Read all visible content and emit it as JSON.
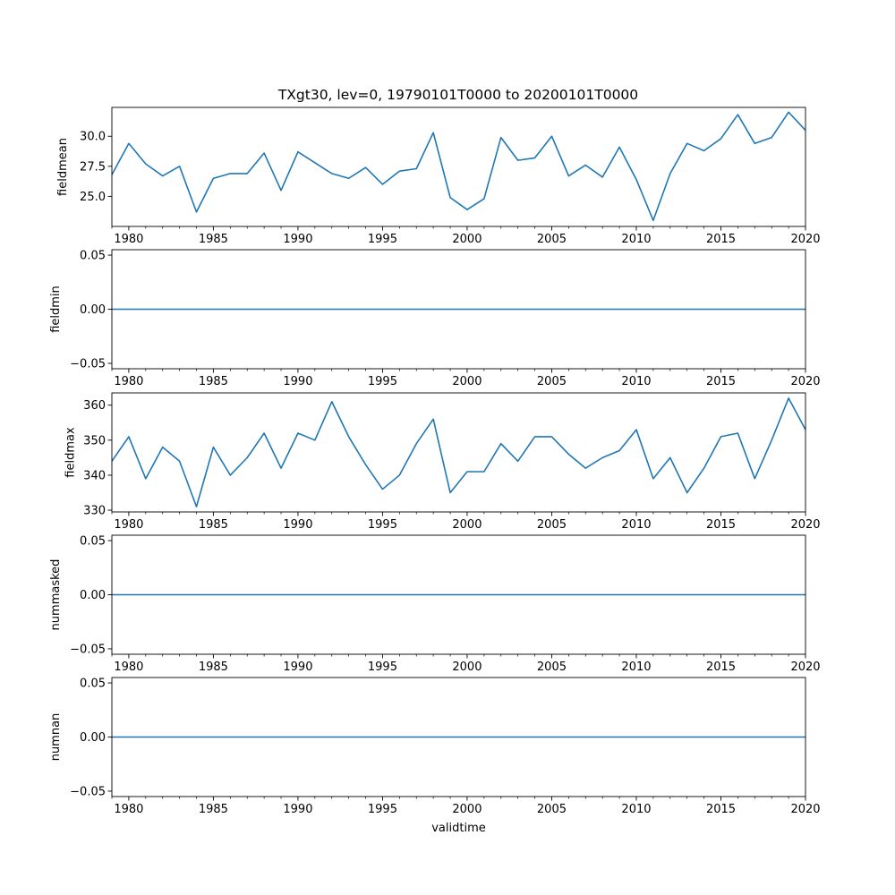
{
  "figure_title": "TXgt30, lev=0, 19790101T0000 to 20200101T0000",
  "line_color": "#1f77b4",
  "chart_data": [
    {
      "type": "line",
      "name": "fieldmean",
      "title": "TXgt30, lev=0, 19790101T0000 to 20200101T0000",
      "ylabel": "fieldmean",
      "xlabel": "",
      "xlim": [
        1979,
        2020
      ],
      "ylim": [
        22.5,
        32.4
      ],
      "yticks": [
        25.0,
        27.5,
        30.0
      ],
      "ytick_labels": [
        "25.0",
        "27.5",
        "30.0"
      ],
      "xticks": [
        1980,
        1985,
        1990,
        1995,
        2000,
        2005,
        2010,
        2015,
        2020
      ],
      "xtick_labels": [
        "1980",
        "1985",
        "1990",
        "1995",
        "2000",
        "2005",
        "2010",
        "2015",
        "2020"
      ],
      "x": [
        1979,
        1980,
        1981,
        1982,
        1983,
        1984,
        1985,
        1986,
        1987,
        1988,
        1989,
        1990,
        1991,
        1992,
        1993,
        1994,
        1995,
        1996,
        1997,
        1998,
        1999,
        2000,
        2001,
        2002,
        2003,
        2004,
        2005,
        2006,
        2007,
        2008,
        2009,
        2010,
        2011,
        2012,
        2013,
        2014,
        2015,
        2016,
        2017,
        2018,
        2019,
        2020
      ],
      "y": [
        26.8,
        29.4,
        27.7,
        26.7,
        27.5,
        23.7,
        26.5,
        26.9,
        26.9,
        28.6,
        25.5,
        28.7,
        27.8,
        26.9,
        26.5,
        27.4,
        26.0,
        27.1,
        27.3,
        30.3,
        24.9,
        23.9,
        24.8,
        29.9,
        28.0,
        28.2,
        30.0,
        26.7,
        27.6,
        26.6,
        29.1,
        26.4,
        23.0,
        26.9,
        29.4,
        28.8,
        29.8,
        31.8,
        29.4,
        29.9,
        32.0,
        30.5
      ]
    },
    {
      "type": "line",
      "name": "fieldmin",
      "title": "",
      "ylabel": "fieldmin",
      "xlabel": "",
      "xlim": [
        1979,
        2020
      ],
      "ylim": [
        -0.055,
        0.055
      ],
      "yticks": [
        -0.05,
        0.0,
        0.05
      ],
      "ytick_labels": [
        "−0.05",
        "0.00",
        "0.05"
      ],
      "xticks": [
        1980,
        1985,
        1990,
        1995,
        2000,
        2005,
        2010,
        2015,
        2020
      ],
      "xtick_labels": [
        "1980",
        "1985",
        "1990",
        "1995",
        "2000",
        "2005",
        "2010",
        "2015",
        "2020"
      ],
      "x": [
        1979,
        2020
      ],
      "y": [
        0,
        0
      ]
    },
    {
      "type": "line",
      "name": "fieldmax",
      "title": "",
      "ylabel": "fieldmax",
      "xlabel": "",
      "xlim": [
        1979,
        2020
      ],
      "ylim": [
        329.5,
        363.5
      ],
      "yticks": [
        330,
        340,
        350,
        360
      ],
      "ytick_labels": [
        "330",
        "340",
        "350",
        "360"
      ],
      "xticks": [
        1980,
        1985,
        1990,
        1995,
        2000,
        2005,
        2010,
        2015,
        2020
      ],
      "xtick_labels": [
        "1980",
        "1985",
        "1990",
        "1995",
        "2000",
        "2005",
        "2010",
        "2015",
        "2020"
      ],
      "x": [
        1979,
        1980,
        1981,
        1982,
        1983,
        1984,
        1985,
        1986,
        1987,
        1988,
        1989,
        1990,
        1991,
        1992,
        1993,
        1994,
        1995,
        1996,
        1997,
        1998,
        1999,
        2000,
        2001,
        2002,
        2003,
        2004,
        2005,
        2006,
        2007,
        2008,
        2009,
        2010,
        2011,
        2012,
        2013,
        2014,
        2015,
        2016,
        2017,
        2018,
        2019,
        2020
      ],
      "y": [
        344,
        351,
        339,
        348,
        344,
        331,
        348,
        340,
        345,
        352,
        342,
        352,
        350,
        361,
        351,
        343,
        336,
        340,
        349,
        356,
        335,
        341,
        341,
        349,
        344,
        351,
        351,
        346,
        342,
        345,
        347,
        353,
        339,
        345,
        335,
        342,
        351,
        352,
        339,
        350,
        362,
        353
      ]
    },
    {
      "type": "line",
      "name": "nummasked",
      "title": "",
      "ylabel": "nummasked",
      "xlabel": "",
      "xlim": [
        1979,
        2020
      ],
      "ylim": [
        -0.055,
        0.055
      ],
      "yticks": [
        -0.05,
        0.0,
        0.05
      ],
      "ytick_labels": [
        "−0.05",
        "0.00",
        "0.05"
      ],
      "xticks": [
        1980,
        1985,
        1990,
        1995,
        2000,
        2005,
        2010,
        2015,
        2020
      ],
      "xtick_labels": [
        "1980",
        "1985",
        "1990",
        "1995",
        "2000",
        "2005",
        "2010",
        "2015",
        "2020"
      ],
      "x": [
        1979,
        2020
      ],
      "y": [
        0,
        0
      ]
    },
    {
      "type": "line",
      "name": "numnan",
      "title": "",
      "ylabel": "numnan",
      "xlabel": "validtime",
      "xlim": [
        1979,
        2020
      ],
      "ylim": [
        -0.055,
        0.055
      ],
      "yticks": [
        -0.05,
        0.0,
        0.05
      ],
      "ytick_labels": [
        "−0.05",
        "0.00",
        "0.05"
      ],
      "xticks": [
        1980,
        1985,
        1990,
        1995,
        2000,
        2005,
        2010,
        2015,
        2020
      ],
      "xtick_labels": [
        "1980",
        "1985",
        "1990",
        "1995",
        "2000",
        "2005",
        "2010",
        "2015",
        "2020"
      ],
      "x": [
        1979,
        2020
      ],
      "y": [
        0,
        0
      ]
    }
  ]
}
